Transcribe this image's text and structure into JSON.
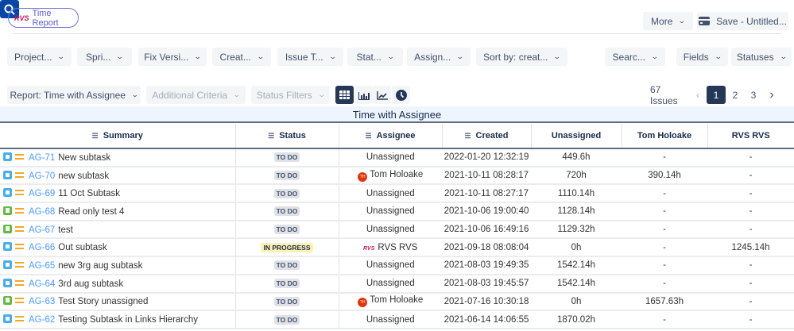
{
  "app": {
    "title": "Time Report",
    "logo": "RVS"
  },
  "header": {
    "more": "More",
    "save": "Save - Untitled..."
  },
  "filters": [
    "Project...",
    "Spri...",
    "Fix Versi...",
    "Creat...",
    "Issue T...",
    "Stat...",
    "Assign...",
    "Sort by: creat..."
  ],
  "filters_right": {
    "search": "Searc...",
    "fields": "Fields",
    "statuses": "Statuses"
  },
  "toolbar": {
    "report": "Report: Time with Assignee",
    "additional": "Additional Criteria",
    "status_filters": "Status Filters",
    "active_view": "table"
  },
  "pagination": {
    "count": "67 Issues",
    "pages": [
      "1",
      "2",
      "3"
    ],
    "current": "1"
  },
  "report_title": "Time with Assignee",
  "columns": [
    "Summary",
    "Status",
    "Assignee",
    "Created",
    "Unassigned",
    "Tom Holoake",
    "RVS RVS"
  ],
  "rows": [
    {
      "type": "subtask",
      "key": "AG-71",
      "summary": "New subtask",
      "status": "TO DO",
      "assignee": "Unassigned",
      "avatar": "",
      "created": "2022-01-20 12:32:19",
      "unassigned": "449.6h",
      "tom": "-",
      "rvs": "-"
    },
    {
      "type": "subtask",
      "key": "AG-70",
      "summary": "new subtask",
      "status": "TO DO",
      "assignee": "Tom Holoake",
      "avatar": "TH",
      "created": "2021-10-11 08:28:17",
      "unassigned": "720h",
      "tom": "390.14h",
      "rvs": "-"
    },
    {
      "type": "subtask",
      "key": "AG-69",
      "summary": "11 Oct Subtask",
      "status": "TO DO",
      "assignee": "Unassigned",
      "avatar": "",
      "created": "2021-10-11 08:27:17",
      "unassigned": "1110.14h",
      "tom": "-",
      "rvs": "-"
    },
    {
      "type": "story",
      "key": "AG-68",
      "summary": "Read only test 4",
      "status": "TO DO",
      "assignee": "Unassigned",
      "avatar": "",
      "created": "2021-10-06 19:00:40",
      "unassigned": "1128.14h",
      "tom": "-",
      "rvs": "-"
    },
    {
      "type": "story",
      "key": "AG-67",
      "summary": "test",
      "status": "TO DO",
      "assignee": "Unassigned",
      "avatar": "",
      "created": "2021-10-06 16:49:16",
      "unassigned": "1129.32h",
      "tom": "-",
      "rvs": "-"
    },
    {
      "type": "subtask",
      "key": "AG-66",
      "summary": "Out subtask",
      "status": "IN PROGRESS",
      "assignee": "RVS RVS",
      "avatar": "RVS",
      "created": "2021-09-18 08:08:04",
      "unassigned": "0h",
      "tom": "-",
      "rvs": "1245.14h"
    },
    {
      "type": "subtask",
      "key": "AG-65",
      "summary": "new 3rg aug subtask",
      "status": "TO DO",
      "assignee": "Unassigned",
      "avatar": "",
      "created": "2021-08-03 19:49:35",
      "unassigned": "1542.14h",
      "tom": "-",
      "rvs": "-"
    },
    {
      "type": "subtask",
      "key": "AG-64",
      "summary": "3rd aug subtask",
      "status": "TO DO",
      "assignee": "Unassigned",
      "avatar": "",
      "created": "2021-08-03 19:45:57",
      "unassigned": "1542.14h",
      "tom": "-",
      "rvs": "-"
    },
    {
      "type": "story",
      "key": "AG-63",
      "summary": "Test Story unassigned",
      "status": "TO DO",
      "assignee": "Tom Holoake",
      "avatar": "TH",
      "created": "2021-07-16 10:30:18",
      "unassigned": "0h",
      "tom": "1657.63h",
      "rvs": "-"
    },
    {
      "type": "subtask",
      "key": "AG-62",
      "summary": "Testing Subtask in Links Hierarchy",
      "status": "TO DO",
      "assignee": "Unassigned",
      "avatar": "",
      "created": "2021-06-14 14:06:55",
      "unassigned": "1870.02h",
      "tom": "-",
      "rvs": "-"
    }
  ]
}
